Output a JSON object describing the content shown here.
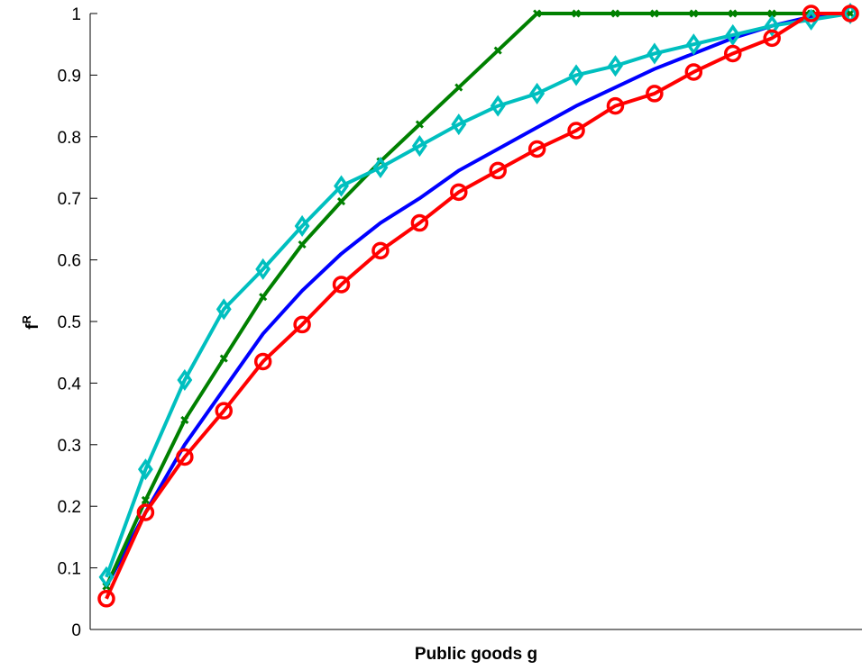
{
  "chart_data": {
    "type": "line",
    "title": "",
    "xlabel": "Public goods g",
    "ylabel": "f",
    "ylabel_superscript": "R",
    "ylim": [
      0,
      1
    ],
    "yticks": [
      "0",
      "0.1",
      "0.2",
      "0.3",
      "0.4",
      "0.5",
      "0.6",
      "0.7",
      "0.8",
      "0.9",
      "1"
    ],
    "xticks_shown": false,
    "grid": false,
    "legend": "none",
    "x": [
      1,
      2,
      3,
      4,
      5,
      6,
      7,
      8,
      9,
      10,
      11,
      12,
      13,
      14,
      15,
      16,
      17,
      18,
      19,
      20
    ],
    "series": [
      {
        "color": "#0000ff",
        "marker": "none",
        "values": [
          0.07,
          0.19,
          0.3,
          0.39,
          0.48,
          0.55,
          0.61,
          0.66,
          0.7,
          0.745,
          0.78,
          0.815,
          0.85,
          0.88,
          0.91,
          0.935,
          0.96,
          0.98,
          0.995,
          1.0
        ]
      },
      {
        "color": "#008000",
        "marker": "x",
        "values": [
          0.07,
          0.21,
          0.34,
          0.44,
          0.54,
          0.625,
          0.695,
          0.76,
          0.82,
          0.88,
          0.94,
          1.0,
          1.0,
          1.0,
          1.0,
          1.0,
          1.0,
          1.0,
          1.0,
          1.0
        ]
      },
      {
        "color": "#00bfbf",
        "marker": "diamond",
        "values": [
          0.085,
          0.26,
          0.405,
          0.52,
          0.585,
          0.655,
          0.72,
          0.75,
          0.785,
          0.82,
          0.85,
          0.87,
          0.9,
          0.915,
          0.935,
          0.95,
          0.965,
          0.98,
          0.99,
          1.0
        ]
      },
      {
        "color": "#ff0000",
        "marker": "circle",
        "values": [
          0.05,
          0.19,
          0.28,
          0.355,
          0.435,
          0.495,
          0.56,
          0.615,
          0.66,
          0.71,
          0.745,
          0.78,
          0.81,
          0.85,
          0.87,
          0.905,
          0.935,
          0.96,
          1.0,
          1.0
        ]
      }
    ]
  }
}
